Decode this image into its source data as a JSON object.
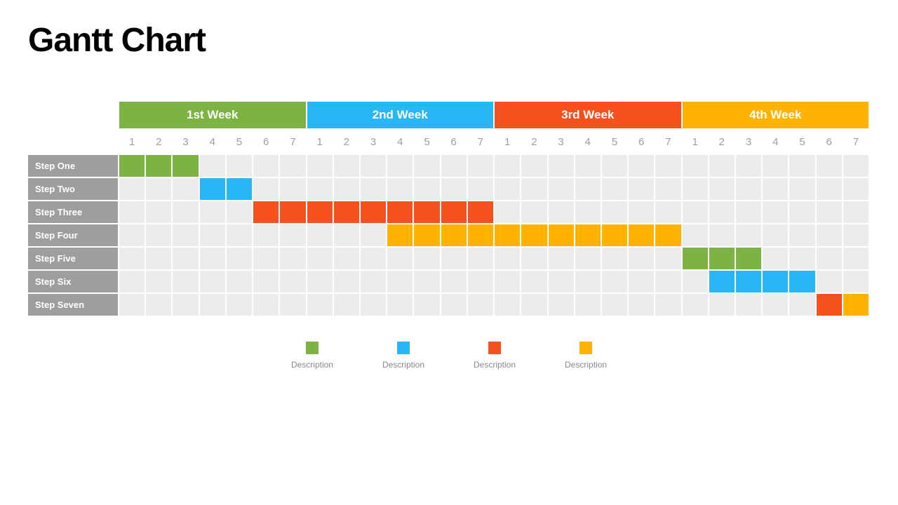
{
  "title": "Gantt Chart",
  "colors": {
    "green": "#7cb342",
    "blue": "#29b6f6",
    "orange": "#f4511e",
    "yellow": "#ffb300",
    "cell_bg": "#ececec",
    "label_bg": "#9e9e9e",
    "day_text": "#9e9e9e"
  },
  "weeks": [
    {
      "label": "1st Week",
      "color": "#7cb342",
      "days": [
        "1",
        "2",
        "3",
        "4",
        "5",
        "6",
        "7"
      ]
    },
    {
      "label": "2nd Week",
      "color": "#29b6f6",
      "days": [
        "1",
        "2",
        "3",
        "4",
        "5",
        "6",
        "7"
      ]
    },
    {
      "label": "3rd Week",
      "color": "#f4511e",
      "days": [
        "1",
        "2",
        "3",
        "4",
        "5",
        "6",
        "7"
      ]
    },
    {
      "label": "4th Week",
      "color": "#ffb300",
      "days": [
        "1",
        "2",
        "3",
        "4",
        "5",
        "6",
        "7"
      ]
    }
  ],
  "total_days": 28,
  "steps": [
    {
      "label": "Step One",
      "bars": [
        {
          "start": 1,
          "end": 3,
          "color": "#7cb342"
        }
      ]
    },
    {
      "label": "Step Two",
      "bars": [
        {
          "start": 4,
          "end": 5,
          "color": "#29b6f6"
        }
      ]
    },
    {
      "label": "Step Three",
      "bars": [
        {
          "start": 6,
          "end": 14,
          "color": "#f4511e"
        }
      ]
    },
    {
      "label": "Step Four",
      "bars": [
        {
          "start": 11,
          "end": 21,
          "color": "#ffb300"
        }
      ]
    },
    {
      "label": "Step Five",
      "bars": [
        {
          "start": 22,
          "end": 24,
          "color": "#7cb342"
        }
      ]
    },
    {
      "label": "Step Six",
      "bars": [
        {
          "start": 23,
          "end": 26,
          "color": "#29b6f6"
        }
      ]
    },
    {
      "label": "Step Seven",
      "bars": [
        {
          "start": 27,
          "end": 27,
          "color": "#f4511e"
        },
        {
          "start": 28,
          "end": 28,
          "color": "#ffb300"
        }
      ]
    }
  ],
  "legend": [
    {
      "color": "#7cb342",
      "label": "Description"
    },
    {
      "color": "#29b6f6",
      "label": "Description"
    },
    {
      "color": "#f4511e",
      "label": "Description"
    },
    {
      "color": "#ffb300",
      "label": "Description"
    }
  ]
}
